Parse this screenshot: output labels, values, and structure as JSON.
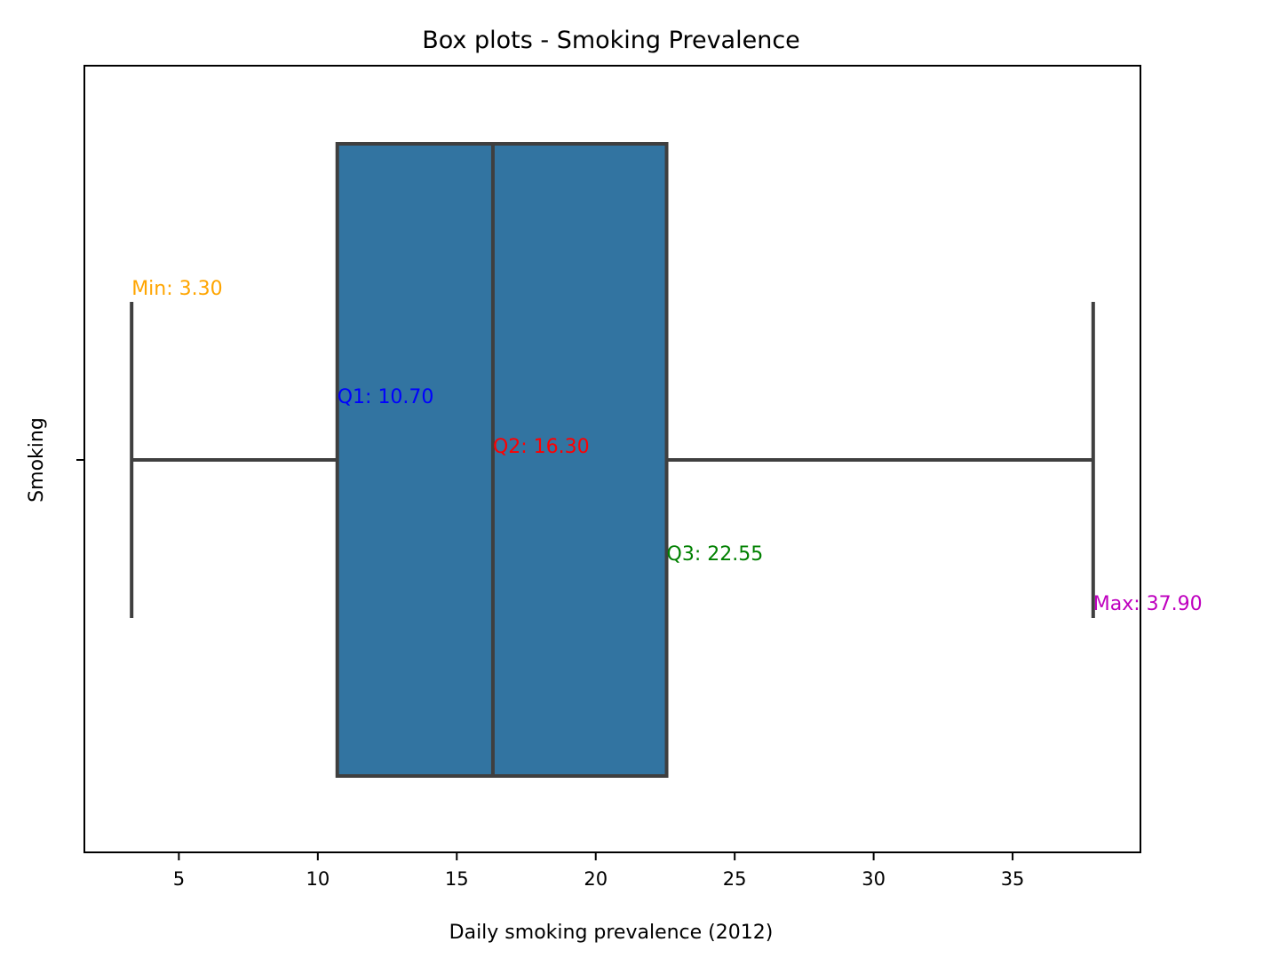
{
  "chart_data": {
    "type": "box",
    "orientation": "horizontal",
    "title": "Box plots - Smoking Prevalence",
    "xlabel": "Daily smoking prevalence (2012)",
    "ylabel": "Smoking",
    "xlim": [
      1.6,
      39.6
    ],
    "xticks": [
      5,
      10,
      15,
      20,
      25,
      30,
      35
    ],
    "xtick_labels": [
      "5",
      "10",
      "15",
      "20",
      "25",
      "30",
      "35"
    ],
    "grid": false,
    "box_color": "#3274a1",
    "line_color": "#3f3f3f",
    "stats": {
      "min": 3.3,
      "q1": 10.7,
      "q2": 16.3,
      "q3": 22.55,
      "max": 37.9
    },
    "annotations": [
      {
        "key": "min",
        "text": "Min: 3.30",
        "color": "#ffa500"
      },
      {
        "key": "q1",
        "text": "Q1: 10.70",
        "color": "#0000ff"
      },
      {
        "key": "q2",
        "text": "Q2: 16.30",
        "color": "#ff0000"
      },
      {
        "key": "q3",
        "text": "Q3: 22.55",
        "color": "#008000"
      },
      {
        "key": "max",
        "text": "Max: 37.90",
        "color": "#bf00bf"
      }
    ]
  }
}
